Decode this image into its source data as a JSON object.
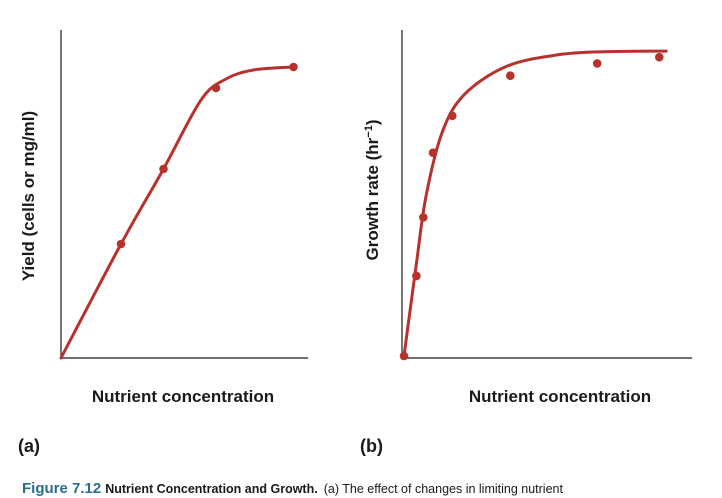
{
  "chart_data": [
    {
      "type": "line",
      "panel_label": "(a)",
      "xlabel": "Nutrient concentration",
      "ylabel": "Yield (cells or mg/ml)",
      "xlim": [
        0,
        10
      ],
      "ylim": [
        0,
        10
      ],
      "curve": [
        [
          0,
          0
        ],
        [
          2.4,
          3.8
        ],
        [
          4.1,
          6.3
        ],
        [
          5.6,
          8.6
        ],
        [
          6.6,
          9.3
        ],
        [
          7.7,
          9.6
        ],
        [
          9.3,
          9.7
        ]
      ],
      "points": [
        [
          2.4,
          3.8
        ],
        [
          4.1,
          6.3
        ],
        [
          6.2,
          9.0
        ],
        [
          9.3,
          9.7
        ]
      ]
    },
    {
      "type": "line",
      "panel_label": "(b)",
      "xlabel": "Nutrient concentration",
      "ylabel": "Growth rate (hr",
      "ylabel_sup": "−1",
      "ylabel_end": ")",
      "xlim": [
        0,
        10
      ],
      "ylim": [
        0,
        10
      ],
      "curve": [
        [
          0,
          0
        ],
        [
          0.45,
          3.0
        ],
        [
          0.8,
          5.2
        ],
        [
          1.4,
          7.3
        ],
        [
          2.2,
          8.5
        ],
        [
          3.7,
          9.4
        ],
        [
          5.5,
          9.77
        ],
        [
          7.2,
          9.88
        ],
        [
          9.5,
          9.9
        ]
      ],
      "points": [
        [
          0,
          0
        ],
        [
          0.45,
          2.6
        ],
        [
          0.7,
          4.5
        ],
        [
          1.05,
          6.6
        ],
        [
          1.75,
          7.8
        ],
        [
          3.85,
          9.1
        ],
        [
          7.0,
          9.5
        ],
        [
          9.25,
          9.7
        ]
      ]
    }
  ],
  "caption": {
    "figure_number": "Figure 7.12",
    "title": "Nutrient Concentration and Growth.",
    "text": "(a) The effect of changes in limiting nutrient"
  },
  "colors": {
    "curve": "#b8322d",
    "axis": "#1a1a1a",
    "caption_figure_number": "#2a6f8a"
  }
}
